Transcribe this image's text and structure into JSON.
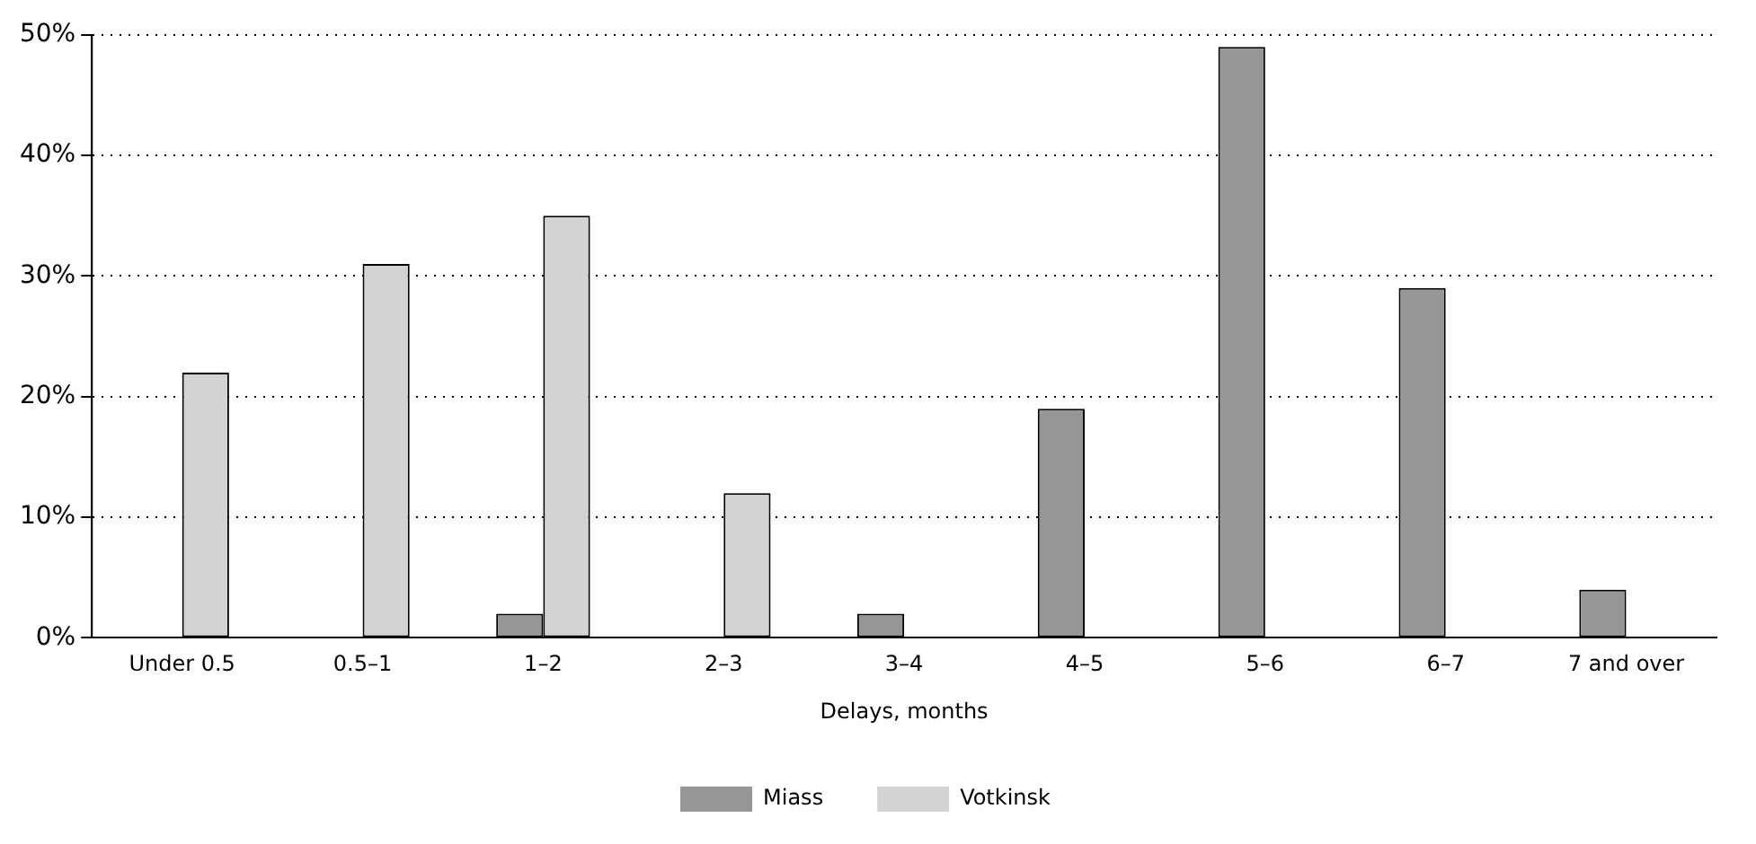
{
  "chart_data": {
    "type": "bar",
    "xlabel": "Delays, months",
    "categories": [
      "Under 0.5",
      "0.5–1",
      "1–2",
      "2–3",
      "3–4",
      "4–5",
      "5–6",
      "6–7",
      "7 and over"
    ],
    "series": [
      {
        "name": "Miass",
        "color": "#969696",
        "values": [
          0,
          0,
          2,
          0,
          2,
          19,
          49,
          29,
          4
        ]
      },
      {
        "name": "Votkinsk",
        "color": "#d3d3d3",
        "values": [
          22,
          31,
          35,
          12,
          0,
          0,
          0,
          0,
          0
        ]
      }
    ],
    "ylim": [
      0,
      50
    ],
    "yticks": [
      {
        "value": 0,
        "label": "0%"
      },
      {
        "value": 10,
        "label": "10%"
      },
      {
        "value": 20,
        "label": "20%"
      },
      {
        "value": 30,
        "label": "30%"
      },
      {
        "value": 40,
        "label": "40%"
      },
      {
        "value": 50,
        "label": "50%"
      }
    ],
    "grid": "y",
    "legend": "bottom"
  }
}
